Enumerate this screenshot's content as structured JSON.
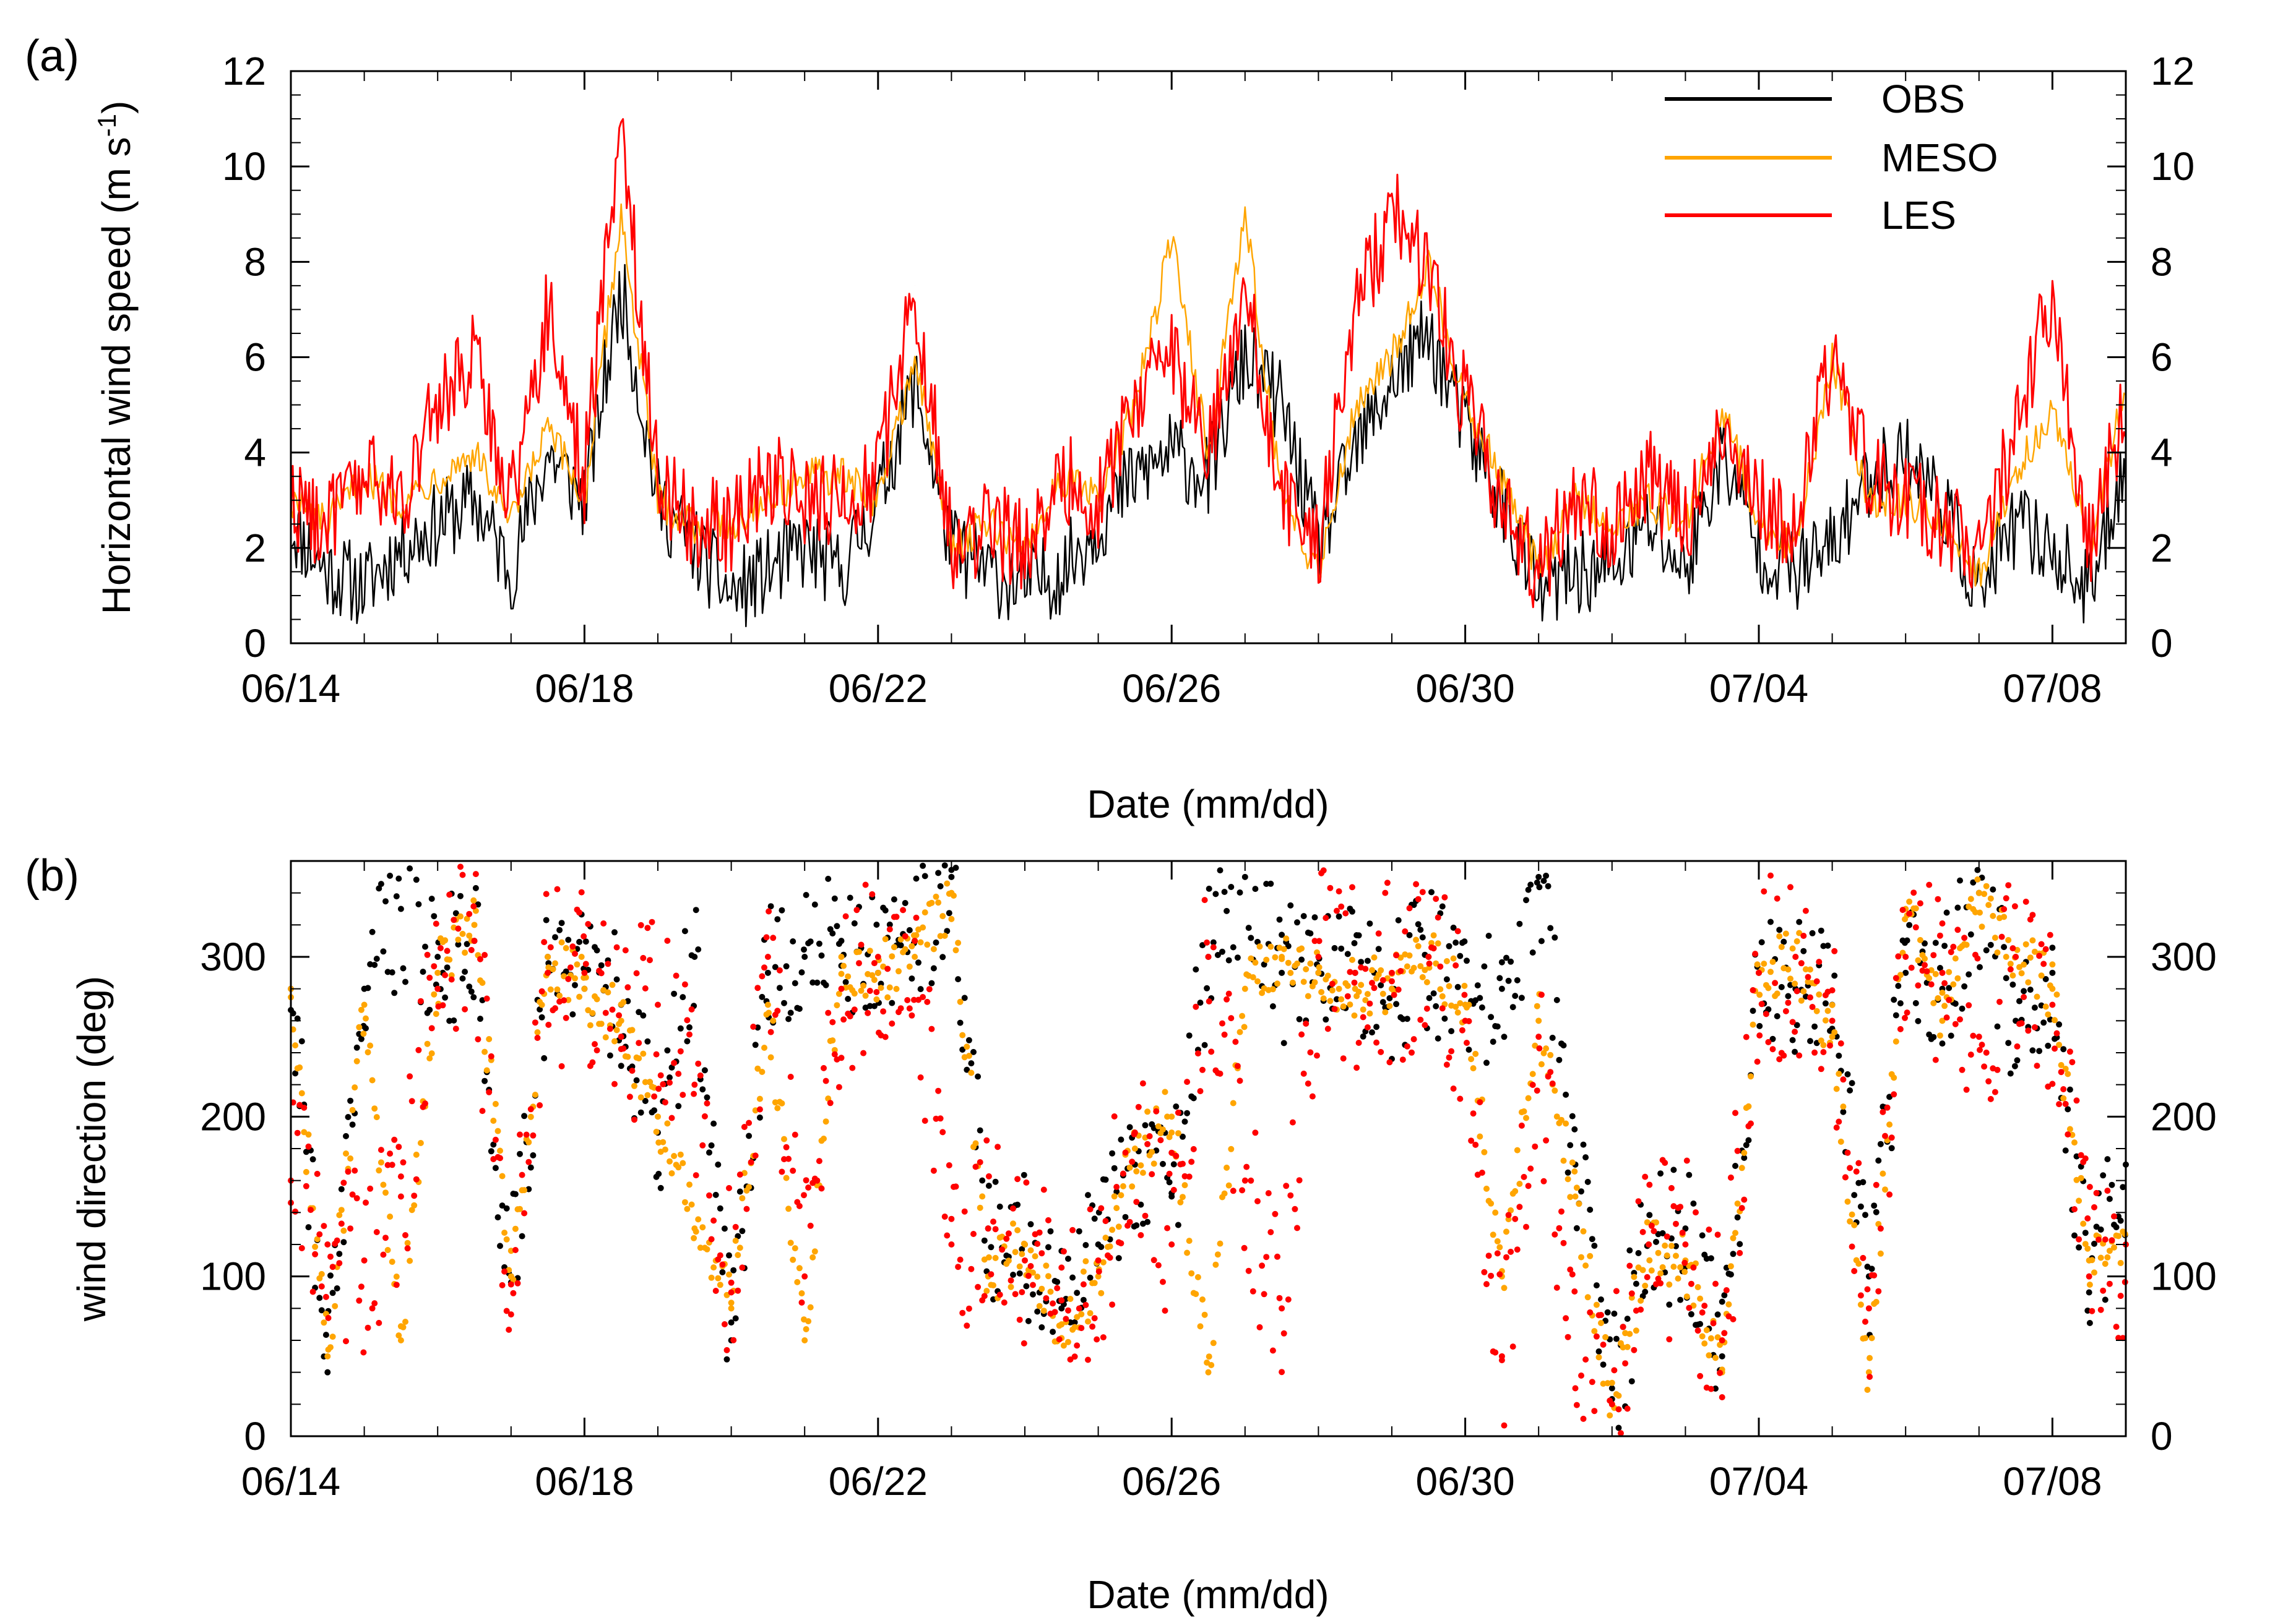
{
  "chart_data": [
    {
      "panel_label": "(a)",
      "type": "line",
      "ylabel_main": "Horizontal wind speed (m s",
      "ylabel_sup": "-1",
      "ylabel_close": ")",
      "xlabel": "Date (mm/dd)",
      "x_unit": "days since 06/14 00:00",
      "xlim": [
        0,
        25
      ],
      "ylim": [
        0,
        12
      ],
      "yticks": [
        0,
        2,
        4,
        6,
        8,
        10,
        12
      ],
      "x_tick_positions": [
        0,
        4,
        8,
        12,
        16,
        20,
        24
      ],
      "x_tick_labels": [
        "06/14",
        "06/18",
        "06/22",
        "06/26",
        "06/30",
        "07/04",
        "07/08"
      ],
      "legend": {
        "placement": "top-right",
        "entries": [
          "OBS",
          "MESO",
          "LES"
        ]
      },
      "series": [
        {
          "name": "OBS",
          "color": "#000000",
          "x": [
            0,
            0.5,
            1,
            1.5,
            2,
            2.5,
            3,
            3.5,
            4,
            4.5,
            5,
            5.5,
            6,
            6.5,
            7,
            7.5,
            8,
            8.5,
            9,
            9.5,
            10,
            10.5,
            11,
            11.5,
            12,
            12.5,
            13,
            13.5,
            14,
            14.5,
            15,
            15.5,
            16,
            16.5,
            17,
            17.5,
            18,
            18.5,
            19,
            19.5,
            20,
            20.5,
            21,
            21.5,
            22,
            22.5,
            23,
            23.5,
            24,
            24.5,
            25
          ],
          "values": [
            2.5,
            1.5,
            1.2,
            2,
            2.5,
            3,
            1.5,
            4,
            3,
            7.5,
            3,
            2,
            1,
            1.5,
            2,
            1.5,
            3,
            5.5,
            2,
            1.5,
            1.2,
            1.5,
            2.5,
            3.5,
            4,
            3.5,
            6,
            5,
            2,
            4,
            5.5,
            6.5,
            4.5,
            3,
            1,
            1.5,
            1.5,
            2.5,
            1.5,
            4,
            2,
            1.5,
            2,
            3.5,
            4,
            3,
            1,
            2.5,
            2,
            1,
            4
          ]
        },
        {
          "name": "MESO",
          "color": "#ffa500",
          "x": [
            0,
            0.5,
            1,
            1.5,
            2,
            2.5,
            3,
            3.5,
            4,
            4.5,
            5,
            5.5,
            6,
            6.5,
            7,
            7.5,
            8,
            8.5,
            9,
            9.5,
            10,
            10.5,
            11,
            11.5,
            12,
            12.5,
            13,
            13.5,
            14,
            14.5,
            15,
            15.5,
            16,
            16.5,
            17,
            17.5,
            18,
            18.5,
            19,
            19.5,
            20,
            20.5,
            21,
            21.5,
            22,
            22.5,
            23,
            23.5,
            24,
            24.5,
            25
          ],
          "values": [
            3,
            2.5,
            3.5,
            3,
            3.5,
            4,
            2.5,
            4.5,
            3,
            9,
            3,
            2.5,
            2.5,
            3,
            3.5,
            3.5,
            3,
            6,
            2,
            2.5,
            2,
            3.5,
            3,
            5,
            8.5,
            4,
            9,
            3,
            1.5,
            5,
            6,
            8,
            5,
            3.5,
            1.5,
            3,
            2.5,
            3,
            2.5,
            5,
            2.5,
            2,
            6,
            3,
            3,
            2.5,
            1.5,
            3.5,
            5,
            2,
            5.5
          ]
        },
        {
          "name": "LES",
          "color": "#ff0000",
          "x": [
            0,
            0.5,
            1,
            1.5,
            2,
            2.5,
            3,
            3.5,
            4,
            4.5,
            5,
            5.5,
            6,
            6.5,
            7,
            7.5,
            8,
            8.5,
            9,
            9.5,
            10,
            10.5,
            11,
            11.5,
            12,
            12.5,
            13,
            13.5,
            14,
            14.5,
            15,
            15.5,
            16,
            16.5,
            17,
            17.5,
            18,
            18.5,
            19,
            19.5,
            20,
            20.5,
            21,
            21.5,
            22,
            22.5,
            23,
            23.5,
            24,
            24.5,
            25
          ],
          "values": [
            3,
            2.5,
            3.5,
            3,
            5,
            6,
            3,
            7,
            3.5,
            11,
            3.5,
            2.5,
            2.5,
            3.5,
            3,
            3,
            3.5,
            7.5,
            2,
            2.5,
            2,
            3.5,
            3,
            5,
            6,
            4,
            7.5,
            3,
            2,
            7,
            9,
            8,
            5,
            3,
            1.5,
            3,
            2.5,
            3.5,
            2.5,
            4.5,
            3,
            2.5,
            6,
            3.5,
            3,
            2.5,
            2,
            4.5,
            7.5,
            2,
            5
          ]
        }
      ]
    },
    {
      "panel_label": "(b)",
      "type": "scatter",
      "ylabel": "wind direction (deg)",
      "xlabel": "Date (mm/dd)",
      "x_unit": "days since 06/14 00:00",
      "xlim": [
        0,
        25
      ],
      "ylim": [
        0,
        360
      ],
      "yticks": [
        0,
        100,
        200,
        300
      ],
      "x_tick_positions": [
        0,
        4,
        8,
        12,
        16,
        20,
        24
      ],
      "x_tick_labels": [
        "06/14",
        "06/18",
        "06/22",
        "06/26",
        "06/30",
        "07/04",
        "07/08"
      ],
      "series": [
        {
          "name": "OBS",
          "color": "#000000",
          "x": [
            0,
            0.5,
            1,
            1.5,
            2,
            2.5,
            3,
            3.5,
            4,
            4.5,
            5,
            5.5,
            6,
            6.5,
            7,
            7.5,
            8,
            8.5,
            9,
            9.5,
            10,
            10.5,
            11,
            11.5,
            12,
            12.5,
            13,
            13.5,
            14,
            14.5,
            15,
            15.5,
            16,
            16.5,
            17,
            17.5,
            18,
            18.5,
            19,
            19.5,
            20,
            20.5,
            21,
            21.5,
            22,
            22.5,
            23,
            23.5,
            24,
            24.5,
            25
          ],
          "values": [
            280,
            40,
            280,
            330,
            300,
            310,
            100,
            300,
            280,
            270,
            190,
            300,
            60,
            290,
            300,
            310,
            290,
            310,
            350,
            130,
            120,
            80,
            120,
            170,
            150,
            300,
            350,
            290,
            290,
            290,
            280,
            300,
            270,
            280,
            350,
            170,
            30,
            120,
            130,
            50,
            290,
            280,
            270,
            100,
            290,
            280,
            340,
            260,
            290,
            90,
            170
          ]
        },
        {
          "name": "MESO",
          "color": "#ffa500",
          "x": [
            0,
            0.5,
            1,
            1.5,
            2,
            2.5,
            3,
            3.5,
            4,
            4.5,
            5,
            5.5,
            6,
            6.5,
            7,
            7.5,
            8,
            8.5,
            9,
            9.5,
            10,
            10.5,
            11,
            11.5,
            12,
            12.5,
            13,
            13.5,
            14,
            14.5,
            15,
            15.5,
            16,
            16.5,
            17,
            17.5,
            18,
            18.5,
            19,
            19.5,
            20,
            20.5,
            21,
            21.5,
            22,
            22.5,
            23,
            23.5,
            24,
            24.5,
            25
          ],
          "values": [
            280,
            50,
            270,
            60,
            290,
            320,
            100,
            300,
            280,
            260,
            200,
            130,
            80,
            270,
            60,
            300,
            290,
            300,
            340,
            100,
            120,
            70,
            100,
            180,
            200,
            40,
            280,
            300,
            290,
            280,
            280,
            300,
            270,
            100,
            260,
            150,
            20,
            120,
            110,
            40,
            290,
            300,
            250,
            40,
            330,
            260,
            340,
            300,
            280,
            110,
            120
          ]
        },
        {
          "name": "LES",
          "color": "#ff0000",
          "x": [
            0,
            0.5,
            1,
            1.5,
            2,
            2.5,
            3,
            3.5,
            4,
            4.5,
            5,
            5.5,
            6,
            6.5,
            7,
            7.5,
            8,
            8.5,
            9,
            9.5,
            10,
            10.5,
            11,
            11.5,
            12,
            12.5,
            13,
            13.5,
            14,
            14.5,
            15,
            15.5,
            16,
            16.5,
            17,
            17.5,
            18,
            18.5,
            19,
            19.5,
            20,
            20.5,
            21,
            21.5,
            22,
            22.5,
            23,
            23.5,
            24,
            24.5,
            25
          ],
          "values": [
            160,
            120,
            110,
            150,
            280,
            310,
            95,
            290,
            290,
            250,
            270,
            220,
            90,
            300,
            100,
            280,
            300,
            310,
            120,
            130,
            110,
            85,
            110,
            190,
            120,
            300,
            160,
            80,
            300,
            290,
            290,
            300,
            260,
            50,
            250,
            30,
            20,
            120,
            120,
            60,
            290,
            300,
            260,
            80,
            300,
            290,
            250,
            300,
            270,
            100,
            120
          ]
        }
      ]
    }
  ]
}
